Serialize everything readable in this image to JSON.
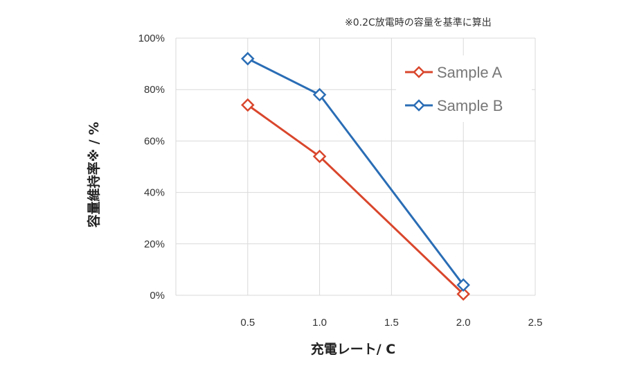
{
  "note": "※0.2C放電時の容量を基準に算出",
  "chart_data": {
    "type": "line",
    "xlabel": "充電レート/ C",
    "ylabel": "容量維持率※ / %",
    "xlim": [
      0,
      2.5
    ],
    "ylim": [
      0,
      100
    ],
    "x_ticks": [
      "0.5",
      "1.0",
      "1.5",
      "2.0",
      "2.5"
    ],
    "y_ticks": [
      "0%",
      "20%",
      "40%",
      "60%",
      "80%",
      "100%"
    ],
    "grid": true,
    "legend_position": "top-right",
    "series": [
      {
        "name": "Sample A",
        "color": "#d9462c",
        "marker": "diamond",
        "x": [
          0.5,
          1.0,
          2.0
        ],
        "y": [
          74,
          54,
          0.5
        ]
      },
      {
        "name": "Sample B",
        "color": "#2a6db5",
        "marker": "diamond",
        "x": [
          0.5,
          1.0,
          2.0
        ],
        "y": [
          92,
          78,
          4
        ]
      }
    ]
  }
}
